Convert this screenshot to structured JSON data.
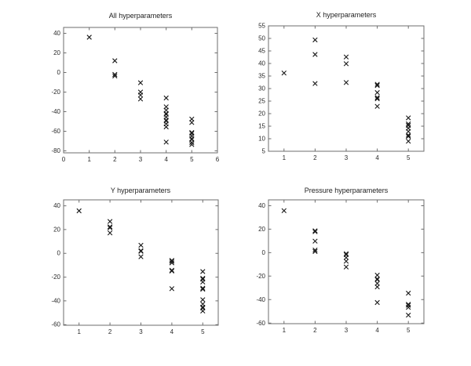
{
  "figure": {
    "background": "#ffffff",
    "axis_color": "#6e6e6e",
    "label_color": "#2a2a2a",
    "marker_color": "#1a1a1a"
  },
  "chart_data": [
    {
      "type": "scatter",
      "title": "All hyperparameters",
      "marker": "x",
      "grid": false,
      "legend": null,
      "xlabel": "",
      "ylabel": "",
      "xlim": [
        0,
        6
      ],
      "ylim": [
        -82,
        46
      ],
      "xticks": [
        0,
        1,
        2,
        3,
        4,
        5,
        6
      ],
      "yticks": [
        -80,
        -60,
        -40,
        -20,
        0,
        20,
        40
      ],
      "points": [
        [
          1,
          36
        ],
        [
          2,
          12
        ],
        [
          2,
          -2
        ],
        [
          2,
          -3.5
        ],
        [
          3,
          -10.5
        ],
        [
          3,
          -20
        ],
        [
          3,
          -23
        ],
        [
          3,
          -27
        ],
        [
          4,
          -26
        ],
        [
          4,
          -35
        ],
        [
          4,
          -38.5
        ],
        [
          4,
          -41.8
        ],
        [
          4,
          -42.6
        ],
        [
          4,
          -45.5
        ],
        [
          4,
          -48.6
        ],
        [
          4,
          -49.4
        ],
        [
          4,
          -52.5
        ],
        [
          4,
          -55.5
        ],
        [
          4,
          -71
        ],
        [
          5,
          -47.5
        ],
        [
          5,
          -51
        ],
        [
          5,
          -61.3
        ],
        [
          5,
          -62.2
        ],
        [
          5,
          -64.8
        ],
        [
          5,
          -67.6
        ],
        [
          5,
          -68.4
        ],
        [
          5,
          -71.5
        ],
        [
          5,
          -73.5
        ]
      ]
    },
    {
      "type": "scatter",
      "title": "X hyperparameters",
      "marker": "x",
      "grid": false,
      "legend": null,
      "xlabel": "",
      "ylabel": "",
      "xlim": [
        0.5,
        5.5
      ],
      "ylim": [
        5,
        55
      ],
      "xticks": [
        1,
        2,
        3,
        4,
        5
      ],
      "yticks": [
        5,
        10,
        15,
        20,
        25,
        30,
        35,
        40,
        45,
        50,
        55
      ],
      "points": [
        [
          1,
          36.2
        ],
        [
          2,
          49.4
        ],
        [
          2,
          43.6
        ],
        [
          2,
          32
        ],
        [
          3,
          42.6
        ],
        [
          3,
          39.9
        ],
        [
          3,
          32.4
        ],
        [
          4,
          31.7
        ],
        [
          4,
          31.2
        ],
        [
          4,
          28.4
        ],
        [
          4,
          26.4
        ],
        [
          4,
          25.9
        ],
        [
          4,
          22.9
        ],
        [
          5,
          18.3
        ],
        [
          5,
          15.9
        ],
        [
          5,
          15.3
        ],
        [
          5,
          14.2
        ],
        [
          5,
          12.9
        ],
        [
          5,
          11.4
        ],
        [
          5,
          10.9
        ],
        [
          5,
          9
        ]
      ]
    },
    {
      "type": "scatter",
      "title": "Y hyperparameters",
      "marker": "x",
      "grid": false,
      "legend": null,
      "xlabel": "",
      "ylabel": "",
      "xlim": [
        0.5,
        5.5
      ],
      "ylim": [
        -60.5,
        45
      ],
      "xticks": [
        1,
        2,
        3,
        4,
        5
      ],
      "yticks": [
        -60,
        -40,
        -20,
        0,
        20,
        40
      ],
      "points": [
        [
          1,
          35.8
        ],
        [
          2,
          26.8
        ],
        [
          2,
          22.3
        ],
        [
          2,
          21.5
        ],
        [
          2,
          17.2
        ],
        [
          3,
          6.8
        ],
        [
          3,
          2.3
        ],
        [
          3,
          1.7
        ],
        [
          3,
          -2.9
        ],
        [
          4,
          -6
        ],
        [
          4,
          -6.7
        ],
        [
          4,
          -8
        ],
        [
          4,
          -14.2
        ],
        [
          4,
          -14.9
        ],
        [
          4,
          -29.7
        ],
        [
          5,
          -15.3
        ],
        [
          5,
          -21
        ],
        [
          5,
          -21.8
        ],
        [
          5,
          -24.1
        ],
        [
          5,
          -29.3
        ],
        [
          5,
          -30.2
        ],
        [
          5,
          -39
        ],
        [
          5,
          -42.7
        ],
        [
          5,
          -45.3
        ],
        [
          5,
          -46
        ],
        [
          5,
          -48.5
        ]
      ]
    },
    {
      "type": "scatter",
      "title": "Pressure hyperparameters",
      "marker": "x",
      "grid": false,
      "legend": null,
      "xlabel": "",
      "ylabel": "",
      "xlim": [
        0.5,
        5.5
      ],
      "ylim": [
        -60.5,
        45
      ],
      "xticks": [
        1,
        2,
        3,
        4,
        5
      ],
      "yticks": [
        -60,
        -40,
        -20,
        0,
        20,
        40
      ],
      "points": [
        [
          1,
          35.8
        ],
        [
          2,
          18.6
        ],
        [
          2,
          17.9
        ],
        [
          2,
          9.8
        ],
        [
          2,
          2.2
        ],
        [
          2,
          1
        ],
        [
          3,
          -0.9
        ],
        [
          3,
          -1.7
        ],
        [
          3,
          -4.2
        ],
        [
          3,
          -7.3
        ],
        [
          3,
          -12.2
        ],
        [
          4,
          -19.2
        ],
        [
          4,
          -22.3
        ],
        [
          4,
          -23
        ],
        [
          4,
          -26.2
        ],
        [
          4,
          -29.2
        ],
        [
          4,
          -42.5
        ],
        [
          5,
          -34.5
        ],
        [
          5,
          -44
        ],
        [
          5,
          -44.8
        ],
        [
          5,
          -46.6
        ],
        [
          5,
          -53.2
        ]
      ]
    }
  ]
}
